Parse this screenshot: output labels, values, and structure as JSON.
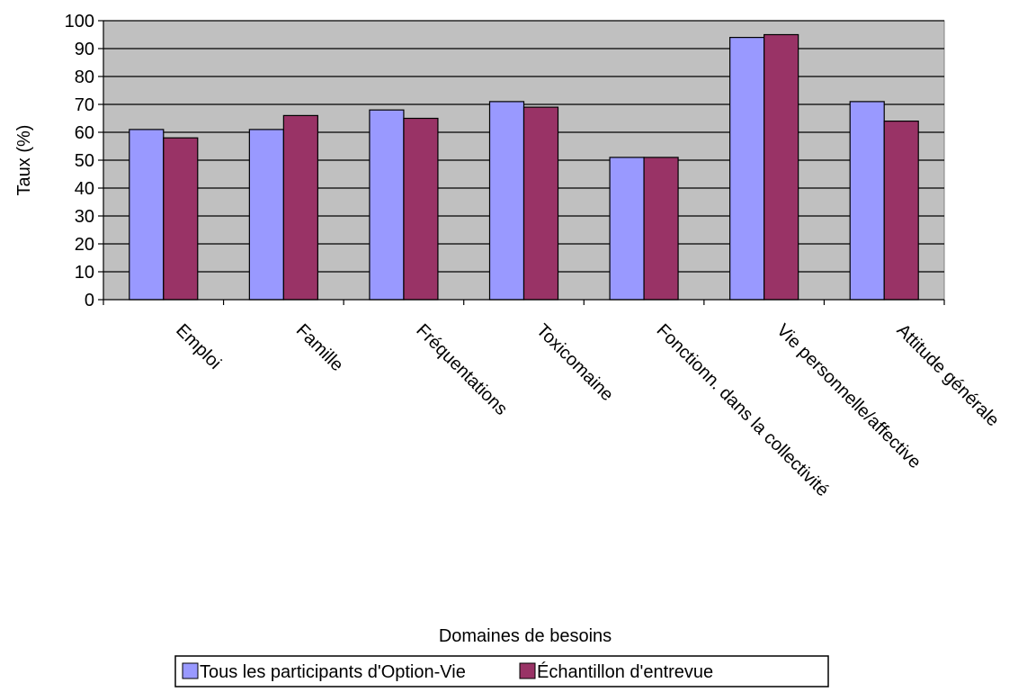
{
  "chart_data": {
    "type": "bar",
    "title": "",
    "xlabel": "Domaines de besoins",
    "ylabel": "Taux (%)",
    "ylim": [
      0,
      100
    ],
    "yticks": [
      0,
      10,
      20,
      30,
      40,
      50,
      60,
      70,
      80,
      90,
      100
    ],
    "grid": true,
    "legend_position": "bottom",
    "categories": [
      "Emploi",
      "Famille",
      "Fréquentations",
      "Toxicomaine",
      "Fonctionn. dans la collectivité",
      "Vie personnelle/affective",
      "Attitude générale"
    ],
    "series": [
      {
        "name": "Tous les participants d'Option-Vie",
        "color": "#9999ff",
        "values": [
          61,
          61,
          68,
          71,
          51,
          94,
          71
        ]
      },
      {
        "name": "Échantillon d'entrevue",
        "color": "#993366",
        "values": [
          58,
          66,
          65,
          69,
          51,
          95,
          64
        ]
      }
    ],
    "plot_background": "#c0c0c0"
  }
}
